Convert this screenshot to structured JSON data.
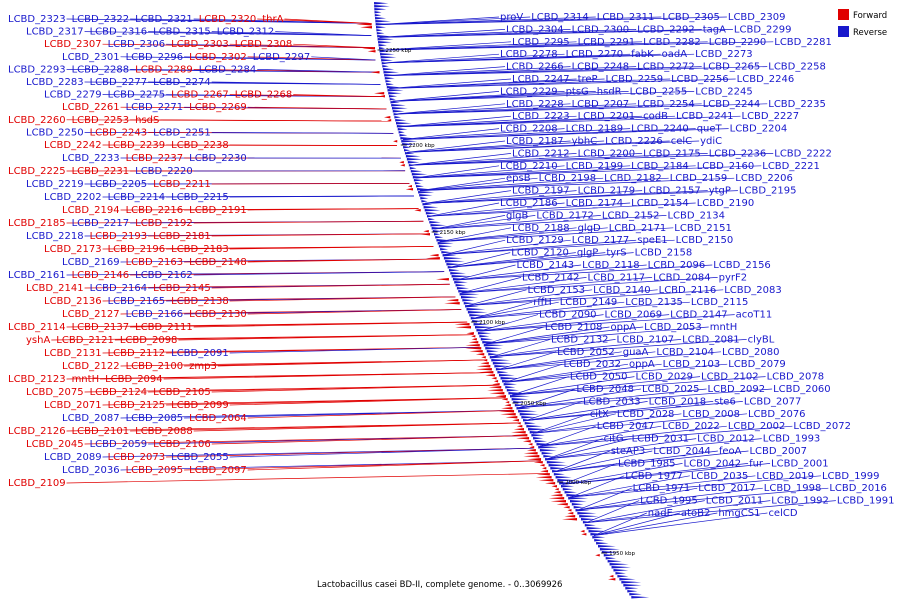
{
  "caption": "Lactobacillus casei BD-II, complete genome. - 0..3069926",
  "legend": [
    {
      "label": "Forward",
      "color": "#e00000"
    },
    {
      "label": "Reverse",
      "color": "#1818cc"
    }
  ],
  "colors": {
    "forward": "#e00000",
    "reverse": "#1818cc",
    "backbone": "#888888"
  },
  "ticks": [
    "2250 kbp",
    "2200 kbp",
    "2150 kbp",
    "2100 kbp",
    "2050 kbp",
    "2000 kbp",
    "1950 kbp"
  ],
  "left_labels": [
    {
      "t": "LCBD_2323",
      "s": "r"
    },
    {
      "t": "LCBD_2322",
      "s": "r"
    },
    {
      "t": "LCBD_2321",
      "s": "r"
    },
    {
      "t": "LCBD_2320",
      "s": "f"
    },
    {
      "t": "thrA",
      "s": "f"
    },
    {
      "t": "LCBD_2317",
      "s": "r"
    },
    {
      "t": "LCBD_2316",
      "s": "r"
    },
    {
      "t": "LCBD_2315",
      "s": "r"
    },
    {
      "t": "LCBD_2312",
      "s": "r"
    },
    {
      "t": "LCBD_2307",
      "s": "f"
    },
    {
      "t": "LCBD_2306",
      "s": "r"
    },
    {
      "t": "LCBD_2303",
      "s": "f"
    },
    {
      "t": "LCBD_2308",
      "s": "f"
    },
    {
      "t": "LCBD_2301",
      "s": "r"
    },
    {
      "t": "LCBD_2296",
      "s": "r"
    },
    {
      "t": "LCBD_2302",
      "s": "f"
    },
    {
      "t": "LCBD_2297",
      "s": "r"
    },
    {
      "t": "LCBD_2293",
      "s": "r"
    },
    {
      "t": "LCBD_2288",
      "s": "r"
    },
    {
      "t": "LCBD_2289",
      "s": "f"
    },
    {
      "t": "LCBD_2284",
      "s": "r"
    },
    {
      "t": "LCBD_2283",
      "s": "r"
    },
    {
      "t": "LCBD_2277",
      "s": "r"
    },
    {
      "t": "LCBD_2274",
      "s": "r"
    },
    {
      "t": "LCBD_2279",
      "s": "r"
    },
    {
      "t": "LCBD_2275",
      "s": "r"
    },
    {
      "t": "LCBD_2267",
      "s": "f"
    },
    {
      "t": "LCBD_2268",
      "s": "f"
    },
    {
      "t": "LCBD_2261",
      "s": "f"
    },
    {
      "t": "LCBD_2271",
      "s": "r"
    },
    {
      "t": "LCBD_2269",
      "s": "f"
    },
    {
      "t": "LCBD_2260",
      "s": "f"
    },
    {
      "t": "LCBD_2253",
      "s": "f"
    },
    {
      "t": "hsdS",
      "s": "f"
    },
    {
      "t": "LCBD_2250",
      "s": "r"
    },
    {
      "t": "LCBD_2243",
      "s": "f"
    },
    {
      "t": "LCBD_2251",
      "s": "r"
    },
    {
      "t": "LCBD_2242",
      "s": "f"
    },
    {
      "t": "LCBD_2239",
      "s": "f"
    },
    {
      "t": "LCBD_2238",
      "s": "f"
    },
    {
      "t": "LCBD_2233",
      "s": "r"
    },
    {
      "t": "LCBD_2237",
      "s": "f"
    },
    {
      "t": "LCBD_2230",
      "s": "r"
    },
    {
      "t": "LCBD_2225",
      "s": "f"
    },
    {
      "t": "LCBD_2231",
      "s": "f"
    },
    {
      "t": "LCBD_2220",
      "s": "r"
    },
    {
      "t": "LCBD_2219",
      "s": "r"
    },
    {
      "t": "LCBD_2205",
      "s": "r"
    },
    {
      "t": "LCBD_2211",
      "s": "f"
    },
    {
      "t": "LCBD_2202",
      "s": "r"
    },
    {
      "t": "LCBD_2214",
      "s": "r"
    },
    {
      "t": "LCBD_2215",
      "s": "r"
    },
    {
      "t": "LCBD_2194",
      "s": "f"
    },
    {
      "t": "LCBD_2216",
      "s": "f"
    },
    {
      "t": "LCBD_2191",
      "s": "f"
    },
    {
      "t": "LCBD_2185",
      "s": "f"
    },
    {
      "t": "LCBD_2217",
      "s": "r"
    },
    {
      "t": "LCBD_2192",
      "s": "f"
    },
    {
      "t": "LCBD_2218",
      "s": "r"
    },
    {
      "t": "LCBD_2193",
      "s": "f"
    },
    {
      "t": "LCBD_2181",
      "s": "f"
    },
    {
      "t": "LCBD_2173",
      "s": "f"
    },
    {
      "t": "LCBD_2196",
      "s": "f"
    },
    {
      "t": "LCBD_2183",
      "s": "f"
    },
    {
      "t": "LCBD_2169",
      "s": "r"
    },
    {
      "t": "LCBD_2163",
      "s": "f"
    },
    {
      "t": "LCBD_2148",
      "s": "f"
    },
    {
      "t": "LCBD_2161",
      "s": "r"
    },
    {
      "t": "LCBD_2146",
      "s": "f"
    },
    {
      "t": "LCBD_2162",
      "s": "r"
    },
    {
      "t": "LCBD_2141",
      "s": "f"
    },
    {
      "t": "LCBD_2164",
      "s": "r"
    },
    {
      "t": "LCBD_2145",
      "s": "f"
    },
    {
      "t": "LCBD_2136",
      "s": "f"
    },
    {
      "t": "LCBD_2165",
      "s": "r"
    },
    {
      "t": "LCBD_2138",
      "s": "f"
    },
    {
      "t": "LCBD_2127",
      "s": "f"
    },
    {
      "t": "LCBD_2166",
      "s": "r"
    },
    {
      "t": "LCBD_2130",
      "s": "f"
    },
    {
      "t": "LCBD_2114",
      "s": "f"
    },
    {
      "t": "LCBD_2137",
      "s": "f"
    },
    {
      "t": "LCBD_2111",
      "s": "f"
    },
    {
      "t": "yshA",
      "s": "f"
    },
    {
      "t": "LCBD_2121",
      "s": "f"
    },
    {
      "t": "LCBD_2098",
      "s": "f"
    },
    {
      "t": "LCBD_2131",
      "s": "f"
    },
    {
      "t": "LCBD_2112",
      "s": "f"
    },
    {
      "t": "LCBD_2091",
      "s": "r"
    },
    {
      "t": "LCBD_2122",
      "s": "f"
    },
    {
      "t": "LCBD_2100",
      "s": "f"
    },
    {
      "t": "zmp3",
      "s": "f"
    },
    {
      "t": "LCBD_2123",
      "s": "f"
    },
    {
      "t": "mntH",
      "s": "f"
    },
    {
      "t": "LCBD_2094",
      "s": "f"
    },
    {
      "t": "LCBD_2075",
      "s": "f"
    },
    {
      "t": "LCBD_2124",
      "s": "f"
    },
    {
      "t": "LCBD_2105",
      "s": "f"
    },
    {
      "t": "LCBD_2071",
      "s": "f"
    },
    {
      "t": "LCBD_2125",
      "s": "f"
    },
    {
      "t": "LCBD_2099",
      "s": "f"
    },
    {
      "t": "LCBD_2087",
      "s": "r"
    },
    {
      "t": "LCBD_2085",
      "s": "r"
    },
    {
      "t": "LCBD_2064",
      "s": "f"
    },
    {
      "t": "LCBD_2126",
      "s": "f"
    },
    {
      "t": "LCBD_2101",
      "s": "f"
    },
    {
      "t": "LCBD_2088",
      "s": "f"
    },
    {
      "t": "LCBD_2045",
      "s": "f"
    },
    {
      "t": "LCBD_2059",
      "s": "r"
    },
    {
      "t": "LCBD_2106",
      "s": "f"
    },
    {
      "t": "LCBD_2089",
      "s": "r"
    },
    {
      "t": "LCBD_2073",
      "s": "f"
    },
    {
      "t": "LCBD_2055",
      "s": "r"
    },
    {
      "t": "LCBD_2036",
      "s": "r"
    },
    {
      "t": "LCBD_2095",
      "s": "f"
    },
    {
      "t": "LCBD_2097",
      "s": "f"
    },
    {
      "t": "LCBD_2109",
      "s": "f"
    }
  ],
  "right_labels": [
    "proV",
    "LCBD_2314",
    "LCBD_2311",
    "LCBD_2305",
    "LCBD_2309",
    "LCBD_2304",
    "LCBD_2300",
    "LCBD_2292",
    "tagA",
    "LCBD_2299",
    "LCBD_2295",
    "LCBD_2291",
    "LCBD_2282",
    "LCBD_2290",
    "LCBD_2281",
    "LCBD_2278",
    "LCBD_2270",
    "fabK",
    "oadA",
    "LCBD_2273",
    "LCBD_2266",
    "LCBD_2248",
    "LCBD_2272",
    "LCBD_2265",
    "LCBD_2258",
    "LCBD_2247",
    "treP",
    "LCBD_2259",
    "LCBD_2256",
    "LCBD_2246",
    "LCBD_2229",
    "ptsG",
    "hsdR",
    "LCBD_2255",
    "LCBD_2245",
    "LCBD_2228",
    "LCBD_2207",
    "LCBD_2254",
    "LCBD_2244",
    "LCBD_2235",
    "LCBD_2223",
    "LCBD_2201",
    "codB",
    "LCBD_2241",
    "LCBD_2227",
    "LCBD_2208",
    "LCBD_2189",
    "LCBD_2240",
    "queT",
    "LCBD_2204",
    "LCBD_2187",
    "ybhC",
    "LCBD_2226",
    "celC",
    "ydiC",
    "LCBD_2212",
    "LCBD_2200",
    "LCBD_2175",
    "LCBD_2236",
    "LCBD_2222",
    "LCBD_2210",
    "LCBD_2199",
    "LCBD_2184",
    "LCBD_2160",
    "LCBD_2221",
    "epsB",
    "LCBD_2198",
    "LCBD_2182",
    "LCBD_2159",
    "LCBD_2206",
    "LCBD_2197",
    "LCBD_2179",
    "LCBD_2157",
    "ytgP",
    "LCBD_2195",
    "LCBD_2186",
    "LCBD_2174",
    "LCBD_2154",
    "LCBD_2190",
    "glgB",
    "LCBD_2172",
    "LCBD_2152",
    "LCBD_2134",
    "LCBD_2188",
    "glgD",
    "LCBD_2171",
    "LCBD_2151",
    "LCBD_2129",
    "LCBD_2177",
    "speE1",
    "LCBD_2150",
    "LCBD_2120",
    "glgP",
    "tyrS",
    "LCBD_2158",
    "LCBD_2143",
    "LCBD_2118",
    "LCBD_2096",
    "LCBD_2156",
    "LCBD_2142",
    "LCBD_2117",
    "LCBD_2084",
    "pyrF2",
    "LCBD_2153",
    "LCBD_2140",
    "LCBD_2116",
    "LCBD_2083",
    "rffH",
    "LCBD_2149",
    "LCBD_2135",
    "LCBD_2115",
    "LCBD_2090",
    "LCBD_2069",
    "LCBD_2147",
    "acoT11",
    "LCBD_2108",
    "oppA",
    "LCBD_2053",
    "mntH",
    "LCBD_2132",
    "LCBD_2107",
    "LCBD_2081",
    "clyBL",
    "LCBD_2052",
    "guaA",
    "LCBD_2104",
    "LCBD_2080",
    "LCBD_2032",
    "oppA",
    "LCBD_2103",
    "LCBD_2079",
    "LCBD_2050",
    "LCBD_2029",
    "LCBD_2102",
    "LCBD_2078",
    "LCBD_2048",
    "LCBD_2025",
    "LCBD_2092",
    "LCBD_2060",
    "LCBD_2033",
    "LCBD_2018",
    "ste6",
    "LCBD_2077",
    "citX",
    "LCBD_2028",
    "LCBD_2008",
    "LCBD_2076",
    "LCBD_2047",
    "LCBD_2022",
    "LCBD_2002",
    "LCBD_2072",
    "citG",
    "LCBD_2031",
    "LCBD_2012",
    "LCBD_1993",
    "steAP3",
    "LCBD_2044",
    "feoA",
    "LCBD_2007",
    "LCBD_1985",
    "LCBD_2042",
    "fur",
    "LCBD_2001",
    "LCBD_1977",
    "LCBD_2035",
    "LCBD_2019",
    "LCBD_1999",
    "LCBD_1971",
    "LCBD_2017",
    "LCBD_1998",
    "LCBD_2016",
    "LCBD_1995",
    "LCBD_2011",
    "LCBD_1992",
    "LCBD_1991",
    "nadE",
    "atoB2",
    "hmgCS1",
    "celCD"
  ]
}
